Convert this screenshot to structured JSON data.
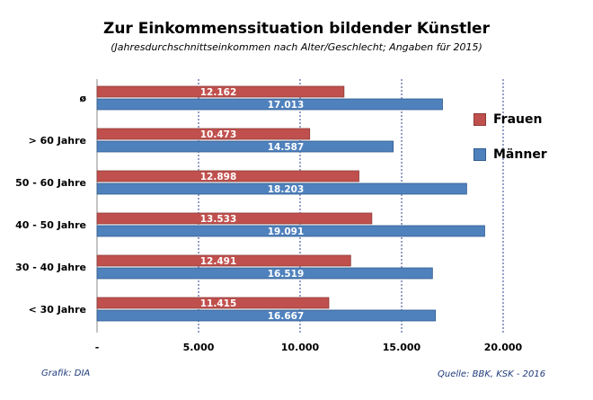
{
  "title": "Zur Einkommenssituation  bildender  Künstler",
  "subtitle": "(Jahresdurchschnittseinkommen nach Alter/Geschlecht; Angaben für 2015)",
  "source_left": "Grafik: DIA",
  "source_right": "Quelle: BBK, KSK - 2016",
  "colors": {
    "frauen": "#c0504d",
    "maenner": "#4f81bd",
    "frauen_stroke": "#8c3a38",
    "maenner_stroke": "#2f5b8e"
  },
  "chart_data": {
    "type": "bar",
    "orientation": "horizontal",
    "categories": [
      "ø",
      "> 60 Jahre",
      "50 - 60 Jahre",
      "40 - 50 Jahre",
      "30 - 40 Jahre",
      "< 30 Jahre"
    ],
    "series": [
      {
        "name": "Frauen",
        "values": [
          12162,
          10473,
          12898,
          13533,
          12491,
          11415
        ],
        "labels": [
          "12.162",
          "10.473",
          "12.898",
          "13.533",
          "12.491",
          "11.415"
        ]
      },
      {
        "name": "Männer",
        "values": [
          17013,
          14587,
          18203,
          19091,
          16519,
          16667
        ],
        "labels": [
          "17.013",
          "14.587",
          "18.203",
          "19.091",
          "16.519",
          "16.667"
        ]
      }
    ],
    "xlim": [
      0,
      20000
    ],
    "xticks": [
      0,
      5000,
      10000,
      15000,
      20000
    ],
    "xtick_labels": [
      "-",
      "5.000",
      "10.000",
      "15.000",
      "20.000"
    ],
    "grid": "vertical dashed",
    "legend": "right"
  }
}
